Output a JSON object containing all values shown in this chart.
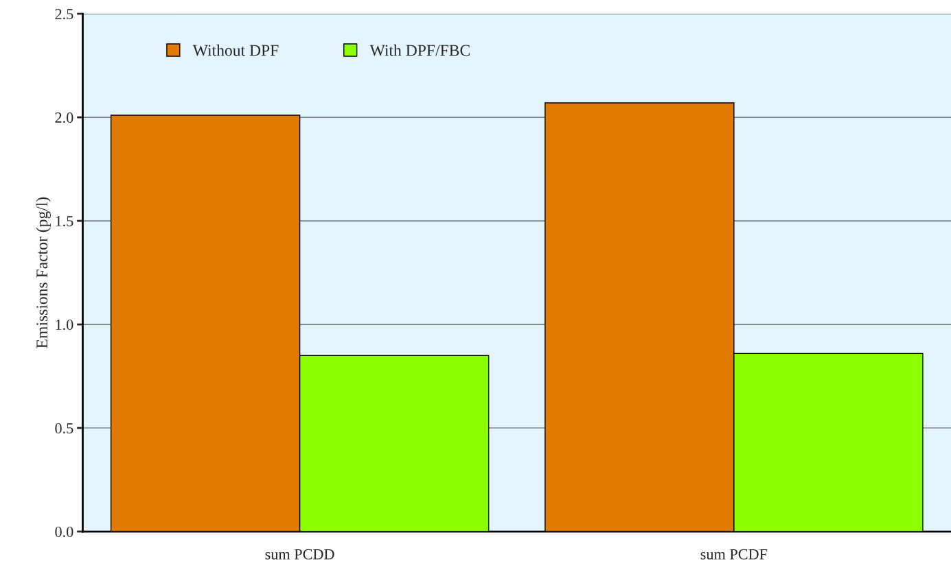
{
  "chart_data": {
    "type": "bar",
    "ylabel": "Emissions Factor (pg/l)",
    "categories": [
      "sum PCDD",
      "sum PCDF"
    ],
    "series": [
      {
        "name": "Without DPF",
        "color": "#e07a00",
        "values": [
          2.01,
          2.07
        ]
      },
      {
        "name": "With DPF/FBC",
        "color": "#8cff00",
        "values": [
          0.85,
          0.86
        ]
      }
    ],
    "ylim": [
      0,
      2.5
    ],
    "yticks": [
      {
        "value": 0,
        "label": "0.0"
      },
      0.5,
      {
        "value": 1,
        "label": "1.0"
      },
      1.5,
      {
        "value": 2,
        "label": "2.0"
      },
      2.5
    ],
    "grid": "y",
    "legend": "top left"
  }
}
